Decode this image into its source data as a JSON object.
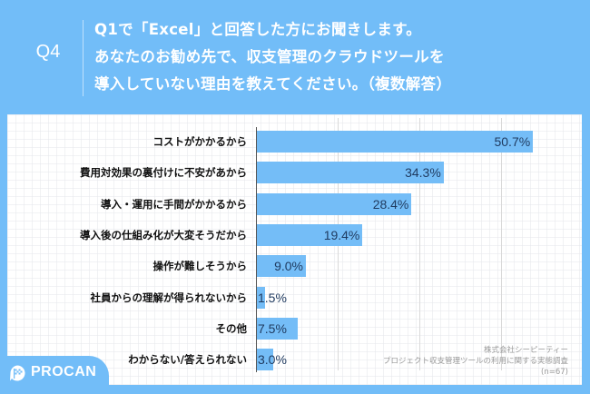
{
  "header": {
    "question_no": "Q4",
    "question_lines": [
      "Q1で「Excel」と回答した方にお聞きします。",
      "あなたのお勧め先で、収支管理のクラウドツールを",
      "導入していない理由を教えてください。（複数解答）"
    ]
  },
  "source": {
    "company": "株式会社シーピーティー",
    "survey": "プロジェクト収支管理ツールの利用に関する実態調査",
    "n": "(n=67)"
  },
  "logo": {
    "text": "PROCAN",
    "icon": "checkered-flag-icon"
  },
  "colors": {
    "background": "#72bdf8",
    "bar": "#74bdf7",
    "value_text": "#1f3a5f"
  },
  "chart_data": {
    "type": "bar",
    "orientation": "horizontal",
    "title": "Q1で「Excel」と回答した方にお聞きします。あなたのお勧め先で、収支管理のクラウドツールを導入していない理由を教えてください。（複数解答）",
    "categories": [
      "コストがかかるから",
      "費用対効果の裏付けに不安があから",
      "導入・運用に手間がかかるから",
      "導入後の仕組み化が大変そうだから",
      "操作が難しそうから",
      "社員からの理解が得られないから",
      "その他",
      "わからない/答えられない"
    ],
    "values": [
      50.7,
      34.3,
      28.4,
      19.4,
      9.0,
      1.5,
      7.5,
      3.0
    ],
    "value_labels": [
      "50.7%",
      "34.3%",
      "28.4%",
      "19.4%",
      "9.0%",
      "1.5%",
      "7.5%",
      "3.0%"
    ],
    "unit": "%",
    "xlabel": "",
    "ylabel": "",
    "xlim": [
      0,
      55
    ],
    "gridlines_at": [
      15,
      30,
      45
    ],
    "grid": true,
    "legend": null,
    "note": "(n=67)"
  }
}
